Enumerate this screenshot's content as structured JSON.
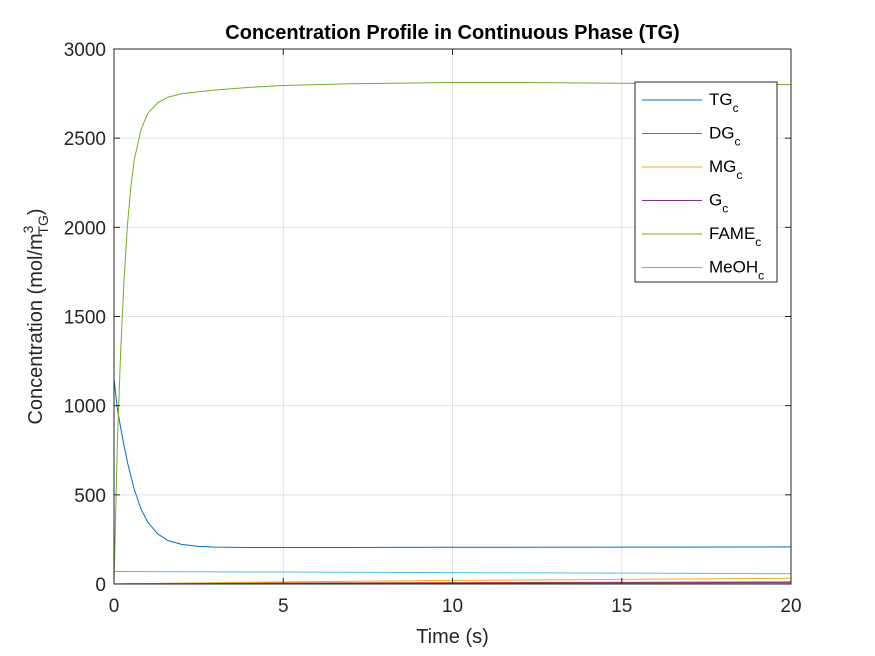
{
  "chart_data": {
    "type": "line",
    "title": "Concentration Profile in Continuous Phase (TG)",
    "xlabel": "Time (s)",
    "ylabel": {
      "base": "Concentration (mol/m",
      "sup": "3",
      "sub": "TG",
      "close": ")"
    },
    "xlim": [
      0,
      20
    ],
    "ylim": [
      0,
      3000
    ],
    "xticks": [
      0,
      5,
      10,
      15,
      20
    ],
    "yticks": [
      0,
      500,
      1000,
      1500,
      2000,
      2500,
      3000
    ],
    "grid": true,
    "legend_position": "top-right",
    "series": [
      {
        "name": "TG",
        "name_sub": "c",
        "color": "#0072BD",
        "points": [
          [
            0,
            1150
          ],
          [
            0.1,
            980
          ],
          [
            0.25,
            820
          ],
          [
            0.4,
            680
          ],
          [
            0.6,
            530
          ],
          [
            0.8,
            420
          ],
          [
            1.0,
            345
          ],
          [
            1.3,
            280
          ],
          [
            1.6,
            243
          ],
          [
            2.0,
            222
          ],
          [
            2.5,
            211
          ],
          [
            3.0,
            207
          ],
          [
            4.0,
            205
          ],
          [
            5.0,
            205
          ],
          [
            7.0,
            205
          ],
          [
            10.0,
            206
          ],
          [
            15.0,
            207
          ],
          [
            20.0,
            208
          ]
        ]
      },
      {
        "name": "DG",
        "name_sub": "c",
        "color": "#D95319",
        "points": [
          [
            0,
            0
          ],
          [
            1,
            2
          ],
          [
            3,
            4
          ],
          [
            5,
            6
          ],
          [
            10,
            8
          ],
          [
            15,
            10
          ],
          [
            20,
            12
          ]
        ]
      },
      {
        "name": "MG",
        "name_sub": "c",
        "color": "#EDB120",
        "points": [
          [
            0,
            0
          ],
          [
            1,
            3
          ],
          [
            3,
            8
          ],
          [
            5,
            12
          ],
          [
            10,
            20
          ],
          [
            15,
            26
          ],
          [
            20,
            32
          ]
        ]
      },
      {
        "name": "G",
        "name_sub": "c",
        "color": "#7E2F8E",
        "points": [
          [
            0,
            0
          ],
          [
            1,
            1
          ],
          [
            5,
            3
          ],
          [
            10,
            5
          ],
          [
            15,
            6
          ],
          [
            20,
            7
          ]
        ]
      },
      {
        "name": "FAME",
        "name_sub": "c",
        "color": "#77AC30",
        "points": [
          [
            0,
            0
          ],
          [
            0.05,
            400
          ],
          [
            0.1,
            800
          ],
          [
            0.2,
            1320
          ],
          [
            0.3,
            1720
          ],
          [
            0.4,
            2020
          ],
          [
            0.5,
            2230
          ],
          [
            0.6,
            2380
          ],
          [
            0.8,
            2550
          ],
          [
            1.0,
            2640
          ],
          [
            1.3,
            2700
          ],
          [
            1.6,
            2730
          ],
          [
            2.0,
            2750
          ],
          [
            3.0,
            2770
          ],
          [
            4.0,
            2785
          ],
          [
            5.0,
            2795
          ],
          [
            7.0,
            2805
          ],
          [
            10.0,
            2812
          ],
          [
            12.0,
            2812
          ],
          [
            15.0,
            2808
          ],
          [
            20.0,
            2800
          ]
        ]
      },
      {
        "name": "MeOH",
        "name_sub": "c",
        "color": "#4DBEEE",
        "points": [
          [
            0,
            70
          ],
          [
            2,
            69
          ],
          [
            5,
            67
          ],
          [
            10,
            64
          ],
          [
            15,
            61
          ],
          [
            20,
            58
          ]
        ]
      }
    ]
  }
}
